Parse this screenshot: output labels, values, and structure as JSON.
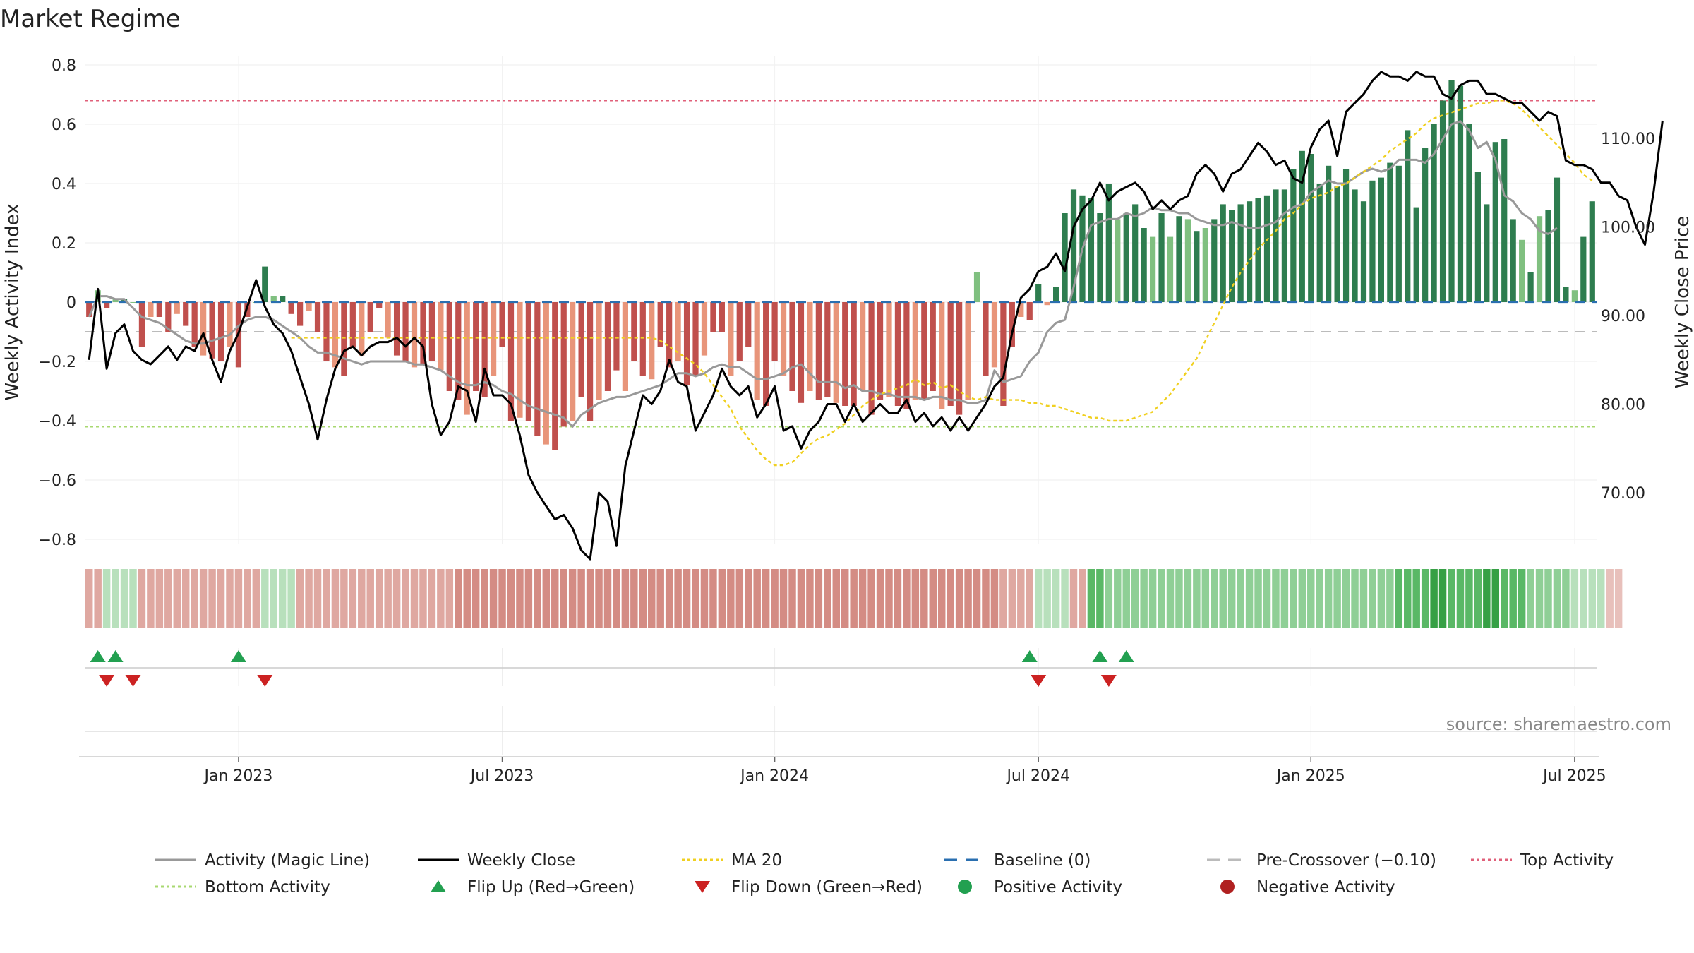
{
  "chart_data": {
    "type": "bar",
    "title": "Market Regime",
    "ylabel_left": "Weekly Activity Index",
    "ylabel_right": "Weekly Close Price",
    "source_text": "source: sharemaestro.com",
    "x_tick_labels": [
      "Jan 2023",
      "Jul 2023",
      "Jan 2024",
      "Jul 2024",
      "Jan 2025",
      "Jul 2025"
    ],
    "x_tick_weeks": [
      17,
      47,
      78,
      108,
      139,
      169
    ],
    "ylim_left": [
      -0.8,
      0.8
    ],
    "y_ticks_left": [
      0.8,
      0.6,
      0.4,
      0.2,
      0,
      -0.2,
      -0.4,
      -0.6,
      -0.8
    ],
    "y_tick_labels_left": [
      "0.8",
      "0.6",
      "0.4",
      "0.2",
      "0",
      "−0.2",
      "−0.4",
      "−0.6",
      "−0.8"
    ],
    "ylim_right": [
      63,
      118
    ],
    "y_ticks_right": [
      110,
      100,
      90,
      80,
      70
    ],
    "y_tick_labels_right": [
      "110.00",
      "100.00",
      "90.00",
      "80.00",
      "70.00"
    ],
    "reference_lines": {
      "top_activity": 0.68,
      "bottom_activity": -0.42,
      "pre_crossover": -0.1,
      "baseline": 0
    },
    "colors": {
      "positive_strong": "#2e7d4f",
      "positive_light": "#80c080",
      "negative_strong": "#c0504d",
      "negative_light": "#e8957a",
      "close_line": "#000000",
      "magic_line": "#999999",
      "ma20": "#f0d020",
      "baseline": "#2a6fb0",
      "pre_crossover": "#bbbbbb",
      "top_activity": "#e0607a",
      "bottom_activity": "#a8d870",
      "flip_up": "#22a050",
      "flip_down": "#cc2222"
    },
    "series": [
      {
        "name": "Activity (Magic Line)",
        "values": [
          -0.05,
          0.02,
          0.02,
          0.01,
          0.01,
          -0.02,
          -0.05,
          -0.06,
          -0.07,
          -0.09,
          -0.11,
          -0.13,
          -0.14,
          -0.14,
          -0.13,
          -0.12,
          -0.11,
          -0.08,
          -0.06,
          -0.05,
          -0.05,
          -0.06,
          -0.08,
          -0.1,
          -0.12,
          -0.15,
          -0.17,
          -0.17,
          -0.18,
          -0.19,
          -0.2,
          -0.21,
          -0.2,
          -0.2,
          -0.2,
          -0.2,
          -0.2,
          -0.21,
          -0.21,
          -0.22,
          -0.23,
          -0.25,
          -0.27,
          -0.28,
          -0.28,
          -0.27,
          -0.28,
          -0.3,
          -0.31,
          -0.33,
          -0.35,
          -0.36,
          -0.37,
          -0.38,
          -0.39,
          -0.42,
          -0.38,
          -0.36,
          -0.34,
          -0.33,
          -0.32,
          -0.32,
          -0.31,
          -0.3,
          -0.29,
          -0.28,
          -0.26,
          -0.24,
          -0.24,
          -0.25,
          -0.24,
          -0.22,
          -0.21,
          -0.22,
          -0.22,
          -0.24,
          -0.26,
          -0.26,
          -0.25,
          -0.24,
          -0.22,
          -0.21,
          -0.24,
          -0.27,
          -0.27,
          -0.27,
          -0.29,
          -0.28,
          -0.3,
          -0.3,
          -0.31,
          -0.31,
          -0.32,
          -0.32,
          -0.32,
          -0.33,
          -0.32,
          -0.32,
          -0.33,
          -0.33,
          -0.34,
          -0.34,
          -0.33,
          -0.23,
          -0.27,
          -0.26,
          -0.25,
          -0.2,
          -0.17,
          -0.1,
          -0.07,
          -0.06,
          0.05,
          0.18,
          0.26,
          0.27,
          0.28,
          0.28,
          0.3,
          0.29,
          0.3,
          0.32,
          0.31,
          0.31,
          0.3,
          0.3,
          0.28,
          0.27,
          0.26,
          0.26,
          0.27,
          0.26,
          0.25,
          0.25,
          0.26,
          0.27,
          0.3,
          0.32,
          0.33,
          0.37,
          0.39,
          0.41,
          0.4,
          0.4,
          0.42,
          0.44,
          0.45,
          0.44,
          0.45,
          0.48,
          0.48,
          0.48,
          0.47,
          0.5,
          0.55,
          0.6,
          0.61,
          0.58,
          0.52,
          0.54,
          0.48,
          0.36,
          0.34,
          0.3,
          0.28,
          0.24,
          0.23,
          0.25
        ]
      },
      {
        "name": "Weekly Close",
        "values": [
          85,
          93,
          84,
          88,
          89,
          86,
          85,
          84.5,
          85.5,
          86.5,
          85,
          86.5,
          86,
          88,
          85,
          82.5,
          86,
          88,
          91,
          94,
          91,
          89,
          88,
          86,
          83,
          80,
          76,
          80.5,
          84,
          86,
          86.5,
          85.5,
          86.5,
          87,
          87,
          87.5,
          86.5,
          87.5,
          86.5,
          80,
          76.5,
          78,
          82,
          81.5,
          78,
          84,
          81,
          81,
          80,
          76.5,
          72,
          70,
          68.5,
          67,
          67.5,
          66,
          63.5,
          62.5,
          70,
          69,
          64,
          73,
          77,
          81,
          80,
          81.5,
          85,
          82.5,
          82,
          77,
          79,
          81,
          84,
          82,
          81,
          82,
          78.5,
          80,
          82,
          77,
          77.5,
          75,
          77,
          78,
          80,
          80,
          78,
          80,
          78,
          79,
          80,
          79,
          79,
          80.5,
          78,
          79,
          77.5,
          78.5,
          77,
          78.5,
          77,
          78.5,
          80,
          82,
          83,
          88,
          92,
          93,
          95,
          95.5,
          97,
          95,
          100,
          102,
          103,
          105,
          103,
          104,
          104.5,
          105,
          104,
          102,
          103,
          102,
          103,
          103.5,
          106,
          107,
          106,
          104,
          106,
          106.5,
          108,
          109.5,
          108.5,
          107,
          107.5,
          105.5,
          105,
          109,
          111,
          112,
          108,
          113,
          114,
          115,
          116.5,
          117.5,
          117,
          117,
          116.5,
          117.5,
          117,
          117,
          115,
          114.5,
          116,
          116.5,
          116.5,
          115,
          115,
          114.5,
          114,
          114,
          113,
          112,
          113,
          112.5,
          107.5,
          107,
          107,
          106.5,
          105,
          105,
          103.5,
          103,
          100,
          98,
          104,
          112
        ]
      },
      {
        "name": "MA 20",
        "values": [
          -0.12,
          -0.12,
          -0.12,
          -0.12,
          -0.12,
          -0.12,
          -0.12,
          -0.12,
          -0.12,
          -0.12,
          -0.12,
          -0.12,
          -0.12,
          -0.12,
          -0.12,
          -0.12,
          -0.12,
          -0.12,
          -0.12,
          -0.12,
          -0.12,
          -0.12,
          -0.12,
          -0.12,
          -0.12,
          -0.12,
          -0.12,
          -0.12,
          -0.12,
          -0.12,
          -0.12,
          -0.12,
          -0.12,
          -0.12,
          -0.12,
          -0.12,
          -0.12,
          -0.12,
          -0.12,
          -0.12,
          -0.12,
          -0.12,
          -0.13,
          -0.15,
          -0.17,
          -0.19,
          -0.21,
          -0.24,
          -0.28,
          -0.32,
          -0.36,
          -0.42,
          -0.46,
          -0.5,
          -0.53,
          -0.55,
          -0.55,
          -0.54,
          -0.51,
          -0.48,
          -0.46,
          -0.45,
          -0.43,
          -0.41,
          -0.38,
          -0.35,
          -0.33,
          -0.31,
          -0.3,
          -0.29,
          -0.28,
          -0.26,
          -0.28,
          -0.27,
          -0.29,
          -0.28,
          -0.3,
          -0.32,
          -0.33,
          -0.32,
          -0.33,
          -0.33,
          -0.33,
          -0.33,
          -0.34,
          -0.34,
          -0.35,
          -0.35,
          -0.36,
          -0.37,
          -0.38,
          -0.39,
          -0.39,
          -0.4,
          -0.4,
          -0.4,
          -0.39,
          -0.38,
          -0.37,
          -0.34,
          -0.31,
          -0.27,
          -0.23,
          -0.19,
          -0.13,
          -0.07,
          -0.01,
          0.05,
          0.1,
          0.14,
          0.18,
          0.21,
          0.24,
          0.28,
          0.3,
          0.33,
          0.35,
          0.36,
          0.37,
          0.39,
          0.4,
          0.42,
          0.44,
          0.46,
          0.48,
          0.51,
          0.53,
          0.55,
          0.57,
          0.6,
          0.62,
          0.63,
          0.64,
          0.65,
          0.66,
          0.67,
          0.67,
          0.68,
          0.68,
          0.67,
          0.65,
          0.62,
          0.59,
          0.56,
          0.53,
          0.5,
          0.47,
          0.43,
          0.41
        ]
      },
      {
        "name": "Weekly Activity Index",
        "values": [
          -0.05,
          0.04,
          -0.02,
          0.01,
          0.01,
          0,
          -0.15,
          -0.05,
          -0.05,
          -0.1,
          -0.04,
          -0.08,
          -0.15,
          -0.18,
          -0.19,
          -0.2,
          -0.15,
          -0.22,
          -0.05,
          0,
          0.12,
          0.02,
          0.02,
          -0.04,
          -0.08,
          -0.03,
          -0.1,
          -0.2,
          -0.22,
          -0.25,
          -0.15,
          -0.18,
          -0.1,
          -0.02,
          -0.12,
          -0.18,
          -0.2,
          -0.22,
          -0.21,
          -0.2,
          -0.23,
          -0.3,
          -0.33,
          -0.38,
          -0.3,
          -0.32,
          -0.25,
          -0.15,
          -0.4,
          -0.39,
          -0.4,
          -0.45,
          -0.48,
          -0.5,
          -0.42,
          -0.4,
          -0.32,
          -0.4,
          -0.33,
          -0.3,
          -0.23,
          -0.3,
          -0.2,
          -0.25,
          -0.26,
          -0.15,
          -0.22,
          -0.2,
          -0.28,
          -0.25,
          -0.18,
          -0.1,
          -0.1,
          -0.25,
          -0.2,
          -0.15,
          -0.33,
          -0.35,
          -0.2,
          -0.25,
          -0.3,
          -0.34,
          -0.3,
          -0.33,
          -0.32,
          -0.34,
          -0.35,
          -0.35,
          -0.3,
          -0.38,
          -0.33,
          -0.32,
          -0.35,
          -0.36,
          -0.33,
          -0.33,
          -0.3,
          -0.36,
          -0.35,
          -0.38,
          -0.33,
          0.1,
          -0.25,
          -0.22,
          -0.35,
          -0.15,
          -0.05,
          -0.06,
          0.06,
          -0.01,
          0.05,
          0.3,
          0.38,
          0.36,
          0.35,
          0.3,
          0.4,
          0.28,
          0.3,
          0.33,
          0.25,
          0.22,
          0.3,
          0.22,
          0.29,
          0.28,
          0.24,
          0.25,
          0.28,
          0.33,
          0.31,
          0.33,
          0.34,
          0.35,
          0.36,
          0.38,
          0.38,
          0.45,
          0.51,
          0.5,
          0.4,
          0.46,
          0.39,
          0.45,
          0.38,
          0.34,
          0.41,
          0.42,
          0.47,
          0.46,
          0.58,
          0.32,
          0.52,
          0.6,
          0.68,
          0.75,
          0.73,
          0.6,
          0.44,
          0.33,
          0.54,
          0.55,
          0.28,
          0.21,
          0.1,
          0.29,
          0.31,
          0.42,
          0.05,
          0.04,
          0.22,
          0.34
        ]
      }
    ],
    "activity_levels": [
      2,
      2,
      1,
      1,
      1,
      1,
      2,
      2,
      2,
      2,
      2,
      2,
      2,
      2,
      2,
      2,
      2,
      2,
      2,
      2,
      1,
      1,
      1,
      1,
      2,
      2,
      2,
      2,
      2,
      2,
      2,
      2,
      2,
      2,
      2,
      2,
      2,
      2,
      2,
      2,
      2,
      2,
      3,
      3,
      3,
      3,
      3,
      3,
      3,
      3,
      3,
      3,
      3,
      3,
      3,
      3,
      3,
      3,
      3,
      3,
      3,
      3,
      3,
      3,
      3,
      3,
      3,
      3,
      3,
      3,
      3,
      3,
      3,
      3,
      3,
      3,
      3,
      3,
      3,
      3,
      3,
      3,
      3,
      3,
      3,
      3,
      3,
      3,
      3,
      3,
      3,
      3,
      3,
      3,
      3,
      3,
      3,
      3,
      3,
      3,
      3,
      3,
      3,
      3,
      2,
      2,
      2,
      2,
      1,
      1,
      1,
      1,
      2,
      2,
      3,
      3,
      2,
      2,
      2,
      2,
      2,
      2,
      2,
      2,
      2,
      2,
      2,
      2,
      2,
      2,
      2,
      2,
      2,
      2,
      2,
      2,
      2,
      2,
      2,
      2,
      2,
      2,
      2,
      2,
      2,
      2,
      2,
      2,
      2,
      3,
      3,
      3,
      3,
      4,
      4,
      3,
      3,
      3,
      3,
      4,
      4,
      3,
      3,
      3,
      2,
      2,
      2,
      2,
      2,
      1,
      1,
      1,
      1,
      1,
      1
    ],
    "activity_signs": [
      -1,
      -1,
      1,
      1,
      1,
      1,
      -1,
      -1,
      -1,
      -1,
      -1,
      -1,
      -1,
      -1,
      -1,
      -1,
      -1,
      -1,
      -1,
      -1,
      1,
      1,
      1,
      1,
      -1,
      -1,
      -1,
      -1,
      -1,
      -1,
      -1,
      -1,
      -1,
      -1,
      -1,
      -1,
      -1,
      -1,
      -1,
      -1,
      -1,
      -1,
      -1,
      -1,
      -1,
      -1,
      -1,
      -1,
      -1,
      -1,
      -1,
      -1,
      -1,
      -1,
      -1,
      -1,
      -1,
      -1,
      -1,
      -1,
      -1,
      -1,
      -1,
      -1,
      -1,
      -1,
      -1,
      -1,
      -1,
      -1,
      -1,
      -1,
      -1,
      -1,
      -1,
      -1,
      -1,
      -1,
      -1,
      -1,
      -1,
      -1,
      -1,
      -1,
      -1,
      -1,
      -1,
      -1,
      -1,
      -1,
      -1,
      -1,
      -1,
      -1,
      -1,
      -1,
      -1,
      -1,
      -1,
      -1,
      -1,
      -1,
      -1,
      -1,
      -1,
      -1,
      -1,
      -1,
      1,
      1,
      1,
      1,
      -1,
      -1,
      1,
      1,
      1,
      1,
      1,
      1,
      1,
      1,
      1,
      1,
      1,
      1,
      1,
      1,
      1,
      1,
      1,
      1,
      1,
      1,
      1,
      1,
      1,
      1,
      1,
      1,
      1,
      1,
      1,
      1,
      1,
      1,
      1,
      1,
      1,
      1,
      1,
      1,
      1,
      1,
      1,
      1,
      1,
      1,
      1,
      1,
      1,
      1,
      1,
      1,
      1,
      1,
      1,
      1,
      1,
      1,
      1,
      1,
      1
    ],
    "flip_up_weeks": [
      1,
      3,
      17,
      107,
      115,
      118
    ],
    "flip_down_weeks": [
      2,
      5,
      20,
      108,
      116
    ],
    "legend": [
      {
        "label": "Activity (Magic Line)",
        "marker": "line-solid",
        "color": "#999999"
      },
      {
        "label": "Weekly Close",
        "marker": "line-solid",
        "color": "#000000"
      },
      {
        "label": "MA 20",
        "marker": "line-dotted",
        "color": "#f0d020"
      },
      {
        "label": "Baseline (0)",
        "marker": "line-dashed",
        "color": "#2a6fb0"
      },
      {
        "label": "Pre-Crossover (−0.10)",
        "marker": "line-dashed",
        "color": "#bbbbbb"
      },
      {
        "label": "Top Activity",
        "marker": "line-dotted",
        "color": "#e0607a"
      },
      {
        "label": "Bottom Activity",
        "marker": "line-dotted",
        "color": "#a8d870"
      },
      {
        "label": "Flip Up (Red→Green)",
        "marker": "triangle-up",
        "color": "#22a050"
      },
      {
        "label": "Flip Down (Green→Red)",
        "marker": "triangle-down",
        "color": "#cc2222"
      },
      {
        "label": "Positive Activity",
        "marker": "circle",
        "color": "#22a050"
      },
      {
        "label": "Negative Activity",
        "marker": "circle",
        "color": "#b02020"
      }
    ]
  }
}
